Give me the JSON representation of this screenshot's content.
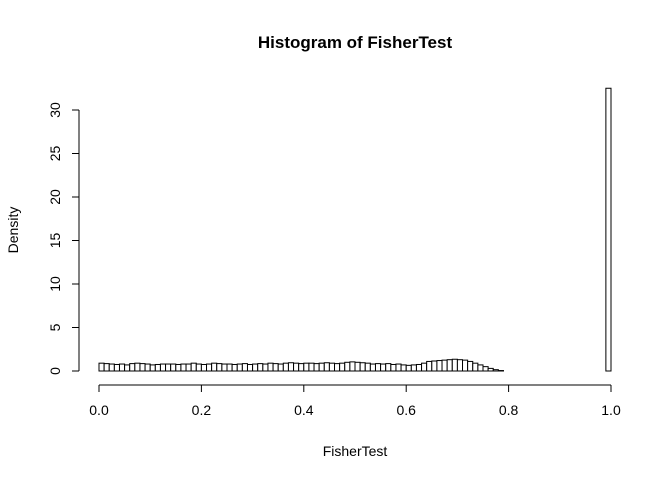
{
  "chart_data": {
    "type": "bar",
    "title": "Histogram of FisherTest",
    "xlabel": "FisherTest",
    "ylabel": "Density",
    "xlim": [
      0,
      1
    ],
    "ylim": [
      0,
      30
    ],
    "x_ticks": [
      "0.0",
      "0.2",
      "0.4",
      "0.6",
      "0.8",
      "1.0"
    ],
    "y_ticks": [
      "0",
      "5",
      "10",
      "15",
      "20",
      "25",
      "30"
    ],
    "grid": false,
    "bar_fill": "#ffffff",
    "bar_stroke": "#000000",
    "bin_width": 0.01,
    "bin_start": 0.0,
    "values": [
      0.9,
      0.85,
      0.8,
      0.75,
      0.8,
      0.7,
      0.85,
      0.9,
      0.85,
      0.8,
      0.7,
      0.75,
      0.8,
      0.8,
      0.8,
      0.75,
      0.8,
      0.8,
      0.9,
      0.8,
      0.75,
      0.8,
      0.9,
      0.85,
      0.8,
      0.8,
      0.75,
      0.8,
      0.85,
      0.75,
      0.8,
      0.85,
      0.8,
      0.9,
      0.85,
      0.8,
      0.9,
      0.95,
      0.9,
      0.85,
      0.9,
      0.9,
      0.85,
      0.9,
      0.95,
      0.9,
      0.85,
      0.9,
      1.0,
      1.05,
      1.0,
      0.95,
      0.9,
      0.8,
      0.85,
      0.8,
      0.85,
      0.75,
      0.8,
      0.7,
      0.65,
      0.7,
      0.75,
      0.9,
      1.1,
      1.15,
      1.2,
      1.25,
      1.3,
      1.35,
      1.3,
      1.25,
      1.1,
      0.9,
      0.7,
      0.5,
      0.3,
      0.15,
      0.05,
      0.0,
      0.0,
      0.0,
      0.0,
      0.0,
      0.0,
      0.0,
      0.0,
      0.0,
      0.0,
      0.0,
      0.0,
      0.0,
      0.0,
      0.0,
      0.0,
      0.0,
      0.0,
      0.0,
      0.0,
      32.5
    ]
  }
}
